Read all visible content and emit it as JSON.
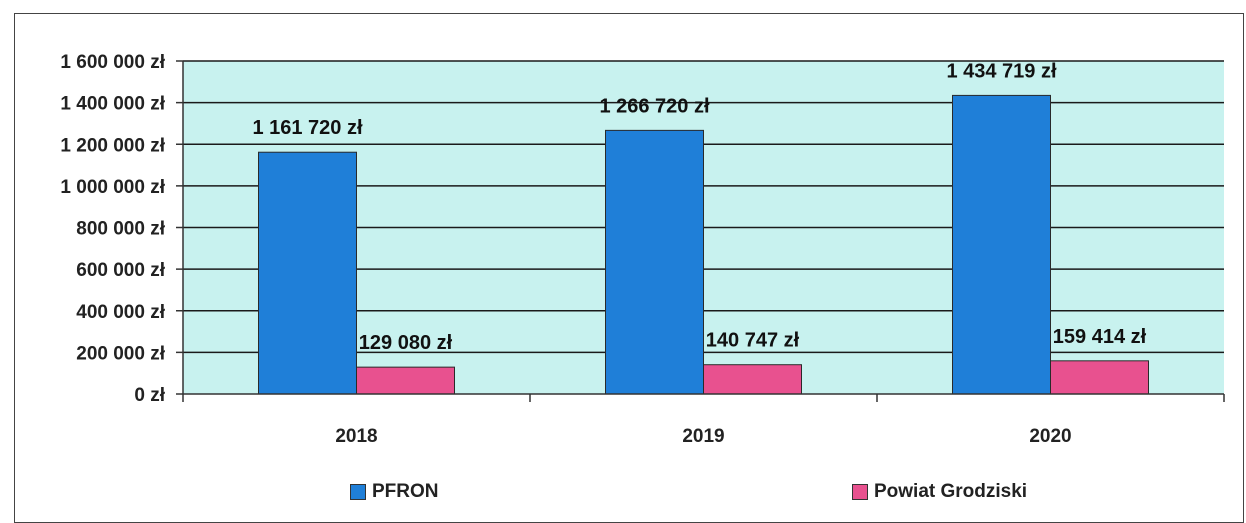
{
  "chart_data": {
    "type": "bar",
    "categories": [
      "2018",
      "2019",
      "2020"
    ],
    "series": [
      {
        "name": "PFRON",
        "values": [
          1161720,
          1266720,
          1434719
        ],
        "color": "#1f7fd8"
      },
      {
        "name": "Powiat Grodziski",
        "values": [
          129080,
          140747,
          159414
        ],
        "color": "#e8518f"
      }
    ],
    "data_labels": [
      [
        "1 161 720 zł",
        "1 266 720 zł",
        "1 434 719 zł"
      ],
      [
        "129 080 zł",
        "140 747 zł",
        "159 414 zł"
      ]
    ],
    "yticks": [
      "0 zł",
      "200 000 zł",
      "400 000 zł",
      "600 000 zł",
      "800 000 zł",
      "1 000 000 zł",
      "1 200 000 zł",
      "1 400 000 zł",
      "1 600 000 zł"
    ],
    "ylim": [
      0,
      1600000
    ],
    "grid": true,
    "legend_position": "bottom",
    "plot_background": "#c8f2ef"
  }
}
